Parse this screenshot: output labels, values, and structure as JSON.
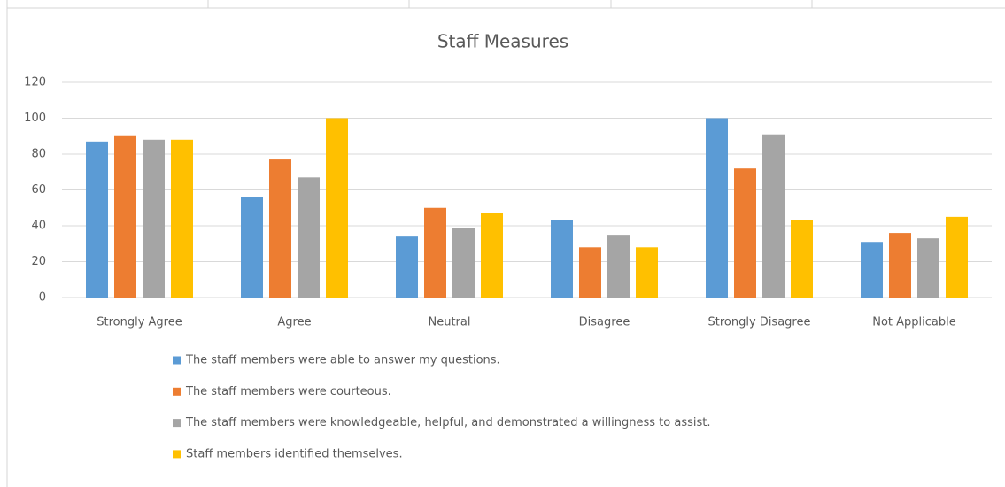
{
  "chart_data": {
    "type": "bar",
    "title": "Staff Measures",
    "categories": [
      "Strongly Agree",
      "Agree",
      "Neutral",
      "Disagree",
      "Strongly Disagree",
      "Not Applicable"
    ],
    "series": [
      {
        "name": "The staff members were able to answer my questions.",
        "color": "#5b9bd5",
        "values": [
          87,
          56,
          34,
          43,
          100,
          31
        ]
      },
      {
        "name": "The staff members were courteous.",
        "color": "#ed7d31",
        "values": [
          90,
          77,
          50,
          28,
          72,
          36
        ]
      },
      {
        "name": "The staff members were knowledgeable, helpful, and demonstrated a willingness to assist.",
        "color": "#a5a5a5",
        "values": [
          88,
          67,
          39,
          35,
          91,
          33
        ]
      },
      {
        "name": "Staff members identified themselves.",
        "color": "#ffc000",
        "values": [
          88,
          100,
          47,
          28,
          43,
          45
        ]
      }
    ],
    "ylim": [
      0,
      120
    ],
    "yticks": [
      0,
      20,
      40,
      60,
      80,
      100,
      120
    ],
    "grid": true,
    "legend": "bottom"
  }
}
